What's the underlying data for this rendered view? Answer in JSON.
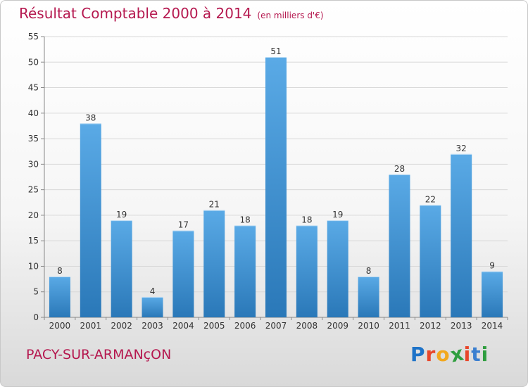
{
  "title": "Résultat Comptable 2000 à 2014",
  "title_unit": "(en milliers d'€)",
  "place": "PACY-SUR-ARMANçON",
  "brand": {
    "letters": [
      "P",
      "r",
      "o",
      "x",
      "i",
      "t",
      "i"
    ],
    "colors": [
      "#1e73c8",
      "#e8462a",
      "#f2a81d",
      "#2f9e3f",
      "#e8462a",
      "#3b7fd0",
      "#2f9e3f"
    ]
  },
  "chart_data": {
    "type": "bar",
    "title": "Résultat Comptable 2000 à 2014",
    "subtitle": "(en milliers d'€)",
    "xlabel": "",
    "ylabel": "",
    "categories": [
      "2000",
      "2001",
      "2002",
      "2003",
      "2004",
      "2005",
      "2006",
      "2007",
      "2008",
      "2009",
      "2010",
      "2011",
      "2012",
      "2013",
      "2014"
    ],
    "values": [
      8,
      38,
      19,
      4,
      17,
      21,
      18,
      51,
      18,
      19,
      8,
      28,
      22,
      32,
      9
    ],
    "ylim": [
      0,
      55
    ],
    "yticks": [
      0,
      5,
      10,
      15,
      20,
      25,
      30,
      35,
      40,
      45,
      50,
      55
    ],
    "grid": true,
    "bar_color_top": "#5aaae6",
    "bar_color_bottom": "#2a78b8",
    "grid_color": "#d8d8d8",
    "axis_color": "#888888"
  }
}
